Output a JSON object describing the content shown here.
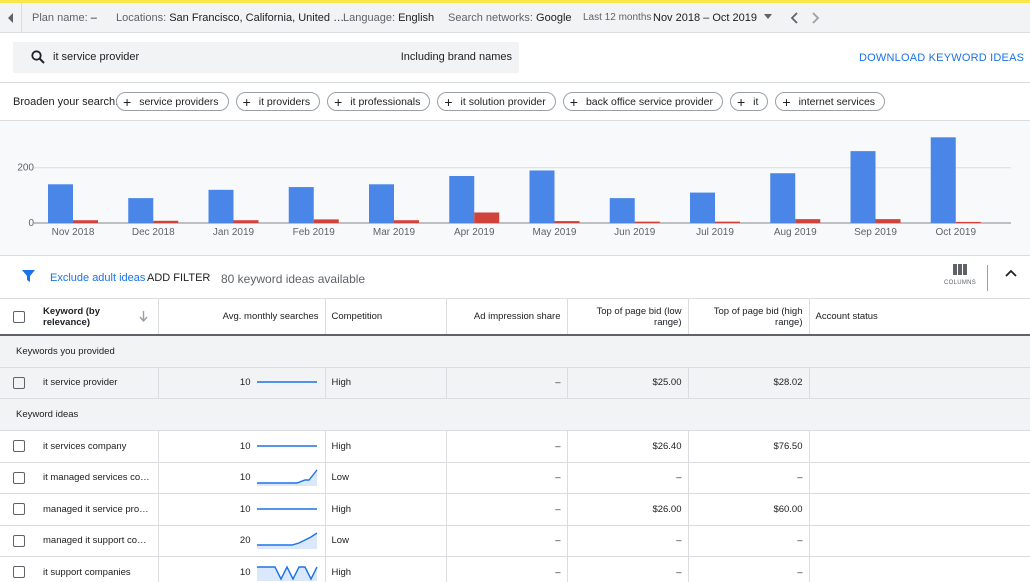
{
  "topbar": {
    "plan_label": "Plan name:",
    "plan_value": "–",
    "locations_label": "Locations:",
    "locations_value": "San Francisco, California, United …",
    "language_label": "Language:",
    "language_value": "English",
    "networks_label": "Search networks:",
    "networks_value": "Google",
    "range_label": "Last 12 months",
    "range_value": "Nov 2018 – Oct 2019"
  },
  "search": {
    "query": "it service provider",
    "brand_toggle": "Including brand names",
    "download_label": "DOWNLOAD KEYWORD IDEAS"
  },
  "broaden": {
    "label": "Broaden your search:",
    "chips": [
      "service providers",
      "it providers",
      "it professionals",
      "it solution provider",
      "back office service provider",
      "it",
      "internet services"
    ]
  },
  "chart_data": {
    "type": "bar",
    "categories": [
      "Nov 2018",
      "Dec 2018",
      "Jan 2019",
      "Feb 2019",
      "Mar 2019",
      "Apr 2019",
      "May 2019",
      "Jun 2019",
      "Jul 2019",
      "Aug 2019",
      "Sep 2019",
      "Oct 2019"
    ],
    "series": [
      {
        "values": [
          140,
          90,
          120,
          130,
          140,
          170,
          190,
          90,
          110,
          180,
          260,
          310
        ],
        "color": "#4a86e8"
      },
      {
        "values": [
          10,
          8,
          10,
          13,
          10,
          38,
          7,
          5,
          5,
          14,
          14,
          4
        ],
        "color": "#d0433a"
      }
    ],
    "yticks": [
      0,
      200
    ],
    "ylim": [
      0,
      340
    ],
    "grid": true
  },
  "filter": {
    "exclude_label": "Exclude adult ideas",
    "add_filter_label": "ADD FILTER",
    "count_label": "80 keyword ideas available",
    "columns_label": "COLUMNS"
  },
  "table": {
    "headers": {
      "keyword": "Keyword (by relevance)",
      "searches": "Avg. monthly searches",
      "competition": "Competition",
      "impression": "Ad impression share",
      "bid_low": "Top of page bid (low range)",
      "bid_high": "Top of page bid (high range)",
      "status": "Account status"
    },
    "group_provided": "Keywords you provided",
    "group_ideas": "Keyword ideas",
    "provided": [
      {
        "keyword": "it service provider",
        "searches": "10",
        "trend": "flat",
        "competition": "High",
        "impression": "–",
        "bid_low": "$25.00",
        "bid_high": "$28.02"
      }
    ],
    "ideas": [
      {
        "keyword": "it services company",
        "searches": "10",
        "trend": "flat",
        "competition": "High",
        "impression": "–",
        "bid_low": "$26.40",
        "bid_high": "$76.50"
      },
      {
        "keyword": "it managed services co…",
        "searches": "10",
        "trend": "rise",
        "competition": "Low",
        "impression": "–",
        "bid_low": "–",
        "bid_high": "–"
      },
      {
        "keyword": "managed it service provi…",
        "searches": "10",
        "trend": "flat",
        "competition": "High",
        "impression": "–",
        "bid_low": "$26.00",
        "bid_high": "$60.00"
      },
      {
        "keyword": "managed it support com…",
        "searches": "20",
        "trend": "rise2",
        "competition": "Low",
        "impression": "–",
        "bid_low": "–",
        "bid_high": "–"
      },
      {
        "keyword": "it support companies",
        "searches": "10",
        "trend": "zigzag",
        "competition": "High",
        "impression": "–",
        "bid_low": "–",
        "bid_high": "–"
      }
    ]
  }
}
